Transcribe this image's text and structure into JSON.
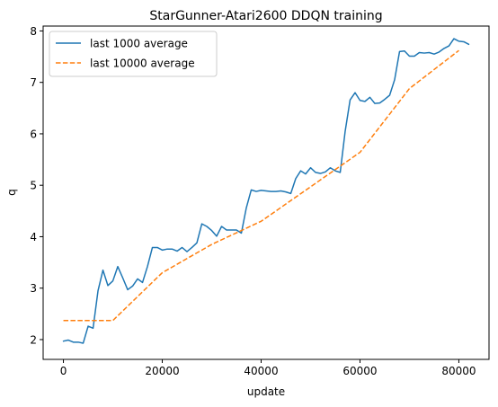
{
  "chart_data": {
    "type": "line",
    "title": "StarGunner-Atari2600 DDQN training",
    "xlabel": "update",
    "ylabel": "q",
    "xlim": [
      -4100,
      86100
    ],
    "ylim": [
      1.615,
      8.095
    ],
    "xticks": [
      0,
      20000,
      40000,
      60000,
      80000
    ],
    "xtick_labels": [
      "0",
      "20000",
      "40000",
      "60000",
      "80000"
    ],
    "yticks": [
      2,
      3,
      4,
      5,
      6,
      7,
      8
    ],
    "ytick_labels": [
      "2",
      "3",
      "4",
      "5",
      "6",
      "7",
      "8"
    ],
    "grid": false,
    "legend_position": "top-left",
    "series": [
      {
        "name": "last 1000 average",
        "color": "#1f77b4",
        "style": "solid",
        "x": [
          0,
          1000,
          2000,
          3000,
          4000,
          5000,
          6000,
          7000,
          8000,
          9000,
          10000,
          11000,
          12000,
          13000,
          14000,
          15000,
          16000,
          17000,
          18000,
          19000,
          20000,
          21000,
          22000,
          23000,
          24000,
          25000,
          26000,
          27000,
          28000,
          29000,
          30000,
          31000,
          32000,
          33000,
          34000,
          35000,
          36000,
          37000,
          38000,
          39000,
          40000,
          41000,
          42000,
          43000,
          44000,
          45000,
          46000,
          47000,
          48000,
          49000,
          50000,
          51000,
          52000,
          53000,
          54000,
          55000,
          56000,
          57000,
          58000,
          59000,
          60000,
          61000,
          62000,
          63000,
          64000,
          65000,
          66000,
          67000,
          68000,
          69000,
          70000,
          71000,
          72000,
          73000,
          74000,
          75000,
          76000,
          77000,
          78000,
          79000,
          80000,
          81000,
          82000
        ],
        "y": [
          1.97,
          1.99,
          1.95,
          1.95,
          1.93,
          2.26,
          2.22,
          2.95,
          3.35,
          3.05,
          3.14,
          3.42,
          3.2,
          2.97,
          3.04,
          3.18,
          3.11,
          3.42,
          3.79,
          3.79,
          3.74,
          3.76,
          3.76,
          3.72,
          3.79,
          3.71,
          3.79,
          3.88,
          4.25,
          4.2,
          4.12,
          4.01,
          4.2,
          4.13,
          4.13,
          4.13,
          4.07,
          4.56,
          4.91,
          4.88,
          4.9,
          4.89,
          4.88,
          4.88,
          4.89,
          4.87,
          4.84,
          5.13,
          5.28,
          5.22,
          5.34,
          5.25,
          5.23,
          5.26,
          5.34,
          5.28,
          5.25,
          6.05,
          6.66,
          6.8,
          6.65,
          6.63,
          6.71,
          6.59,
          6.6,
          6.67,
          6.75,
          7.05,
          7.6,
          7.61,
          7.51,
          7.51,
          7.58,
          7.57,
          7.58,
          7.55,
          7.59,
          7.66,
          7.71,
          7.85,
          7.8,
          7.79,
          7.74
        ]
      },
      {
        "name": "last 10000 average",
        "color": "#ff7f0e",
        "style": "dashed",
        "x": [
          0,
          5000,
          10000,
          20000,
          30000,
          40000,
          50000,
          60000,
          70000,
          80000
        ],
        "y": [
          2.37,
          2.37,
          2.37,
          3.3,
          3.85,
          4.3,
          4.97,
          5.64,
          6.88,
          7.62
        ]
      }
    ]
  }
}
